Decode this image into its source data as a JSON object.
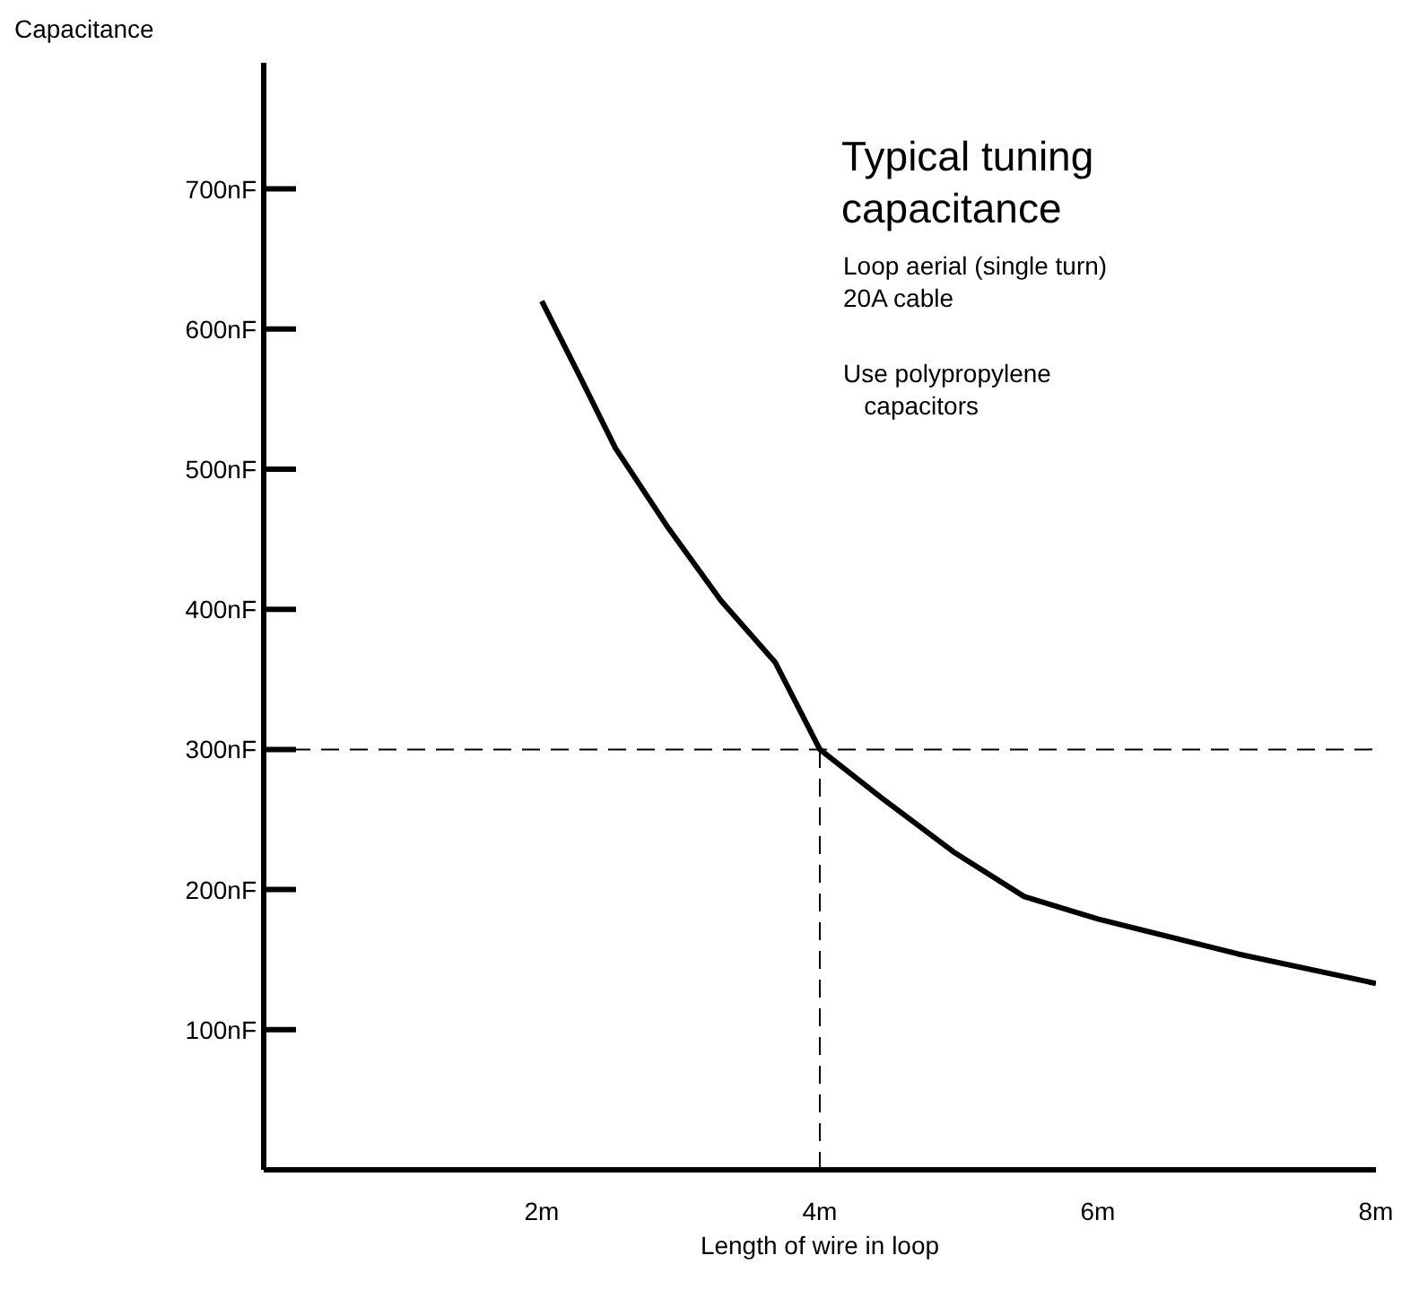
{
  "chart_data": {
    "type": "line",
    "title": "Typical tuning capacitance",
    "xlabel": "Length of wire in loop",
    "ylabel": "Capacitance",
    "annotations": [
      "Loop aerial (single turn)\n20A cable",
      "Use polypropylene\n   capacitors"
    ],
    "x": [
      2,
      2.27,
      2.53,
      2.91,
      3.29,
      3.68,
      4,
      4.45,
      4.96,
      5.47,
      6,
      7.01,
      8
    ],
    "series": [
      {
        "color": "#000000",
        "values": [
          620,
          567,
          515,
          458,
          406,
          362,
          300,
          265,
          227,
          195,
          179,
          154,
          133
        ]
      }
    ],
    "xlim": [
      0,
      8
    ],
    "ylim": [
      0,
      790
    ],
    "xticks": [
      {
        "value": 2,
        "label": "2m"
      },
      {
        "value": 4,
        "label": "4m"
      },
      {
        "value": 6,
        "label": "6m"
      },
      {
        "value": 8,
        "label": "8m"
      }
    ],
    "yticks": [
      {
        "value": 100,
        "label": "100nF"
      },
      {
        "value": 200,
        "label": "200nF"
      },
      {
        "value": 300,
        "label": "300nF"
      },
      {
        "value": 400,
        "label": "400nF"
      },
      {
        "value": 500,
        "label": "500nF"
      },
      {
        "value": 600,
        "label": "600nF"
      },
      {
        "value": 700,
        "label": "700nF"
      }
    ],
    "ref_lines": [
      {
        "axis": "y",
        "value": 300,
        "line_style": "dashed"
      },
      {
        "axis": "x",
        "value": 4,
        "line_style": "dashed"
      }
    ],
    "grid": false,
    "legend": false,
    "marker": "none",
    "line_style": "solid"
  }
}
